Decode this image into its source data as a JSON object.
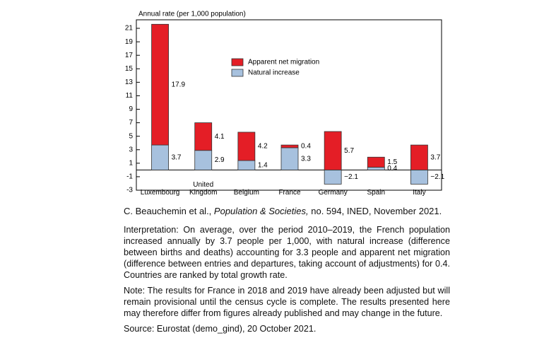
{
  "chart_data": {
    "type": "stacked-bar",
    "y_axis_title": "Annual rate (per 1,000 population)",
    "categories": [
      "Luxembourg",
      "United Kingdom",
      "Belgium",
      "France",
      "Germany",
      "Spain",
      "Italy"
    ],
    "series": [
      {
        "name": "Apparent net migration",
        "color": "#e41e26",
        "values": [
          17.9,
          4.1,
          4.2,
          0.4,
          5.7,
          1.5,
          3.7
        ],
        "value_labels": [
          "17.9",
          "4.1",
          "4.2",
          "0.4",
          "5.7",
          "1.5",
          "3.7"
        ]
      },
      {
        "name": "Natural increase",
        "color": "#a7c1de",
        "values": [
          3.7,
          2.9,
          1.4,
          3.3,
          -2.1,
          0.4,
          -2.1
        ],
        "value_labels": [
          "3.7",
          "2.9",
          "1.4",
          "3.3",
          "−2.1",
          "0.4",
          "−2.1"
        ]
      }
    ],
    "ylim": [
      -3,
      22
    ],
    "yticks": [
      -3,
      -1,
      1,
      3,
      5,
      7,
      9,
      11,
      13,
      15,
      17,
      19,
      21
    ]
  },
  "notes": {
    "citation": [
      "C. Beauchemin et al.,",
      "Population & Societies,",
      "no. 594, INED, November 2021."
    ],
    "interpretation": "Interpretation: On average, over the period 2010–2019, the French population increased annually by 3.7 people per 1,000, with natural increase (difference between births and deaths) accounting for 3.3 people and apparent net migration (difference between entries and departures, taking account of adjustments) for 0.4. Countries are ranked by total growth rate.",
    "note": "Note: The results for France in 2018 and 2019 have already been adjusted but will remain provisional until the census cycle is complete. The results presented here may therefore differ from figures already published and may change in the future.",
    "source": "Source: Eurostat (demo_gind), 20 October 2021."
  }
}
